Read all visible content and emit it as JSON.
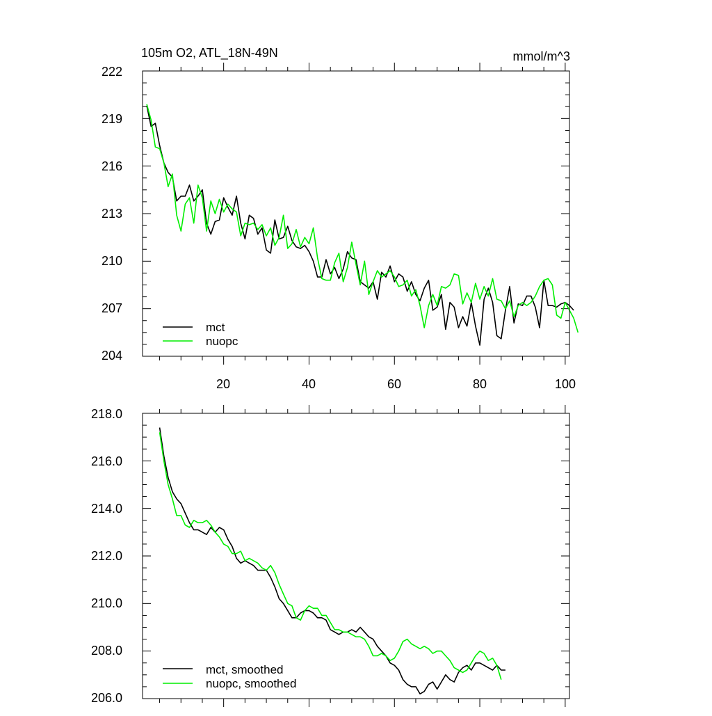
{
  "chart_data": [
    {
      "type": "line",
      "title": "105m O2, ATL_18N-49N",
      "units": "mmol/m^3",
      "xlim": [
        1,
        101
      ],
      "ylim": [
        204,
        222
      ],
      "x_ticks": [
        20,
        40,
        60,
        80,
        100
      ],
      "x_tick_labels": [
        "20",
        "40",
        "60",
        "80",
        "100"
      ],
      "y_ticks": [
        204,
        207,
        210,
        213,
        216,
        219,
        222
      ],
      "y_tick_labels": [
        "204",
        "207",
        "210",
        "213",
        "216",
        "219",
        "222"
      ],
      "x_start": 2,
      "legend_position": "bottom-left",
      "series": [
        {
          "name": "mct",
          "color": "#000000",
          "values": [
            219.8,
            218.5,
            218.7,
            217.3,
            216.2,
            215.6,
            215.3,
            213.8,
            214.1,
            214.1,
            214.8,
            213.8,
            214.1,
            214.5,
            212.4,
            211.7,
            212.5,
            212.6,
            214.0,
            213.4,
            212.9,
            214.1,
            212.4,
            211.4,
            212.9,
            212.7,
            211.7,
            212.1,
            210.7,
            210.5,
            212.6,
            211.4,
            211.5,
            212.2,
            211.3,
            210.9,
            210.8,
            211.0,
            210.6,
            210.0,
            209.0,
            209.0,
            210.1,
            209.2,
            209.6,
            208.9,
            209.5,
            210.6,
            210.2,
            210.1,
            208.7,
            208.5,
            208.3,
            208.7,
            207.6,
            209.3,
            209.0,
            209.7,
            208.7,
            209.2,
            209.0,
            208.1,
            208.7,
            207.9,
            207.5,
            208.3,
            208.8,
            206.9,
            207.1,
            207.9,
            205.7,
            207.4,
            207.1,
            205.8,
            206.5,
            205.9,
            207.4,
            205.9,
            204.7,
            207.6,
            208.3,
            207.4,
            205.3,
            205.1,
            206.9,
            208.4,
            206.1,
            207.3,
            207.2,
            207.8,
            207.8,
            207.1,
            205.8,
            208.8,
            207.2,
            207.2,
            207.1,
            207.3,
            207.4,
            207.2,
            206.9
          ]
        },
        {
          "name": "nuopc",
          "color": "#00ee00",
          "values": [
            219.9,
            218.9,
            217.2,
            217.1,
            216.2,
            214.7,
            215.5,
            212.9,
            211.9,
            213.6,
            214.0,
            212.4,
            214.8,
            214.0,
            211.9,
            213.8,
            213.0,
            213.9,
            213.1,
            213.6,
            213.3,
            213.1,
            211.6,
            212.4,
            212.3,
            212.4,
            212.0,
            212.3,
            211.6,
            212.1,
            211.0,
            211.5,
            212.9,
            210.8,
            211.1,
            212.0,
            210.9,
            211.5,
            211.1,
            212.1,
            210.2,
            208.9,
            208.8,
            208.8,
            209.9,
            210.5,
            208.7,
            209.6,
            211.2,
            209.8,
            208.5,
            210.0,
            207.9,
            208.7,
            209.4,
            209.0,
            209.2,
            209.4,
            209.0,
            208.4,
            208.5,
            208.8,
            207.8,
            208.2,
            207.2,
            205.8,
            207.2,
            207.9,
            207.2,
            208.4,
            208.3,
            208.5,
            209.2,
            209.1,
            207.3,
            208.0,
            207.4,
            208.6,
            207.6,
            208.4,
            207.8,
            208.9,
            207.6,
            207.5,
            207.0,
            207.5,
            206.5,
            207.2,
            207.4,
            207.2,
            207.4,
            207.8,
            208.4,
            208.8,
            208.9,
            208.5,
            206.6,
            206.4,
            207.4,
            206.9,
            206.4,
            205.5
          ]
        }
      ]
    },
    {
      "type": "line",
      "xlim": [
        1,
        101
      ],
      "ylim": [
        206,
        218
      ],
      "x_ticks": [
        20,
        40,
        60,
        80,
        100
      ],
      "y_ticks": [
        206,
        208,
        210,
        212,
        214,
        216,
        218
      ],
      "y_tick_labels": [
        "206.0",
        "208.0",
        "210.0",
        "212.0",
        "214.0",
        "216.0",
        "218.0"
      ],
      "x_start": 5,
      "legend_position": "bottom-left",
      "series": [
        {
          "name": "mct, smoothed",
          "color": "#000000",
          "values": [
            217.4,
            216.2,
            215.3,
            214.7,
            214.4,
            214.2,
            213.8,
            213.4,
            213.1,
            213.1,
            213.0,
            212.9,
            213.2,
            213.0,
            213.2,
            213.1,
            212.7,
            212.4,
            211.9,
            211.7,
            211.8,
            211.7,
            211.6,
            211.4,
            211.4,
            211.4,
            211.1,
            210.7,
            210.2,
            210.0,
            209.7,
            209.4,
            209.4,
            209.6,
            209.7,
            209.7,
            209.6,
            209.4,
            209.4,
            209.3,
            208.9,
            208.8,
            208.7,
            208.8,
            208.8,
            208.9,
            208.8,
            209.0,
            208.8,
            208.6,
            208.5,
            208.2,
            208.0,
            207.8,
            207.5,
            207.4,
            207.2,
            206.8,
            206.6,
            206.5,
            206.5,
            206.2,
            206.3,
            206.6,
            206.7,
            206.4,
            206.7,
            207.0,
            206.8,
            206.7,
            207.1,
            207.3,
            207.4,
            207.2,
            207.5,
            207.5,
            207.4,
            207.3,
            207.2,
            207.4,
            207.2,
            207.2
          ]
        },
        {
          "name": "nuopc, smoothed",
          "color": "#00ee00",
          "values": [
            217.2,
            216.0,
            215.0,
            214.4,
            213.7,
            213.7,
            213.3,
            213.2,
            213.5,
            213.4,
            213.4,
            213.5,
            213.3,
            213.0,
            212.8,
            212.5,
            212.4,
            212.1,
            212.1,
            212.2,
            211.8,
            211.9,
            211.8,
            211.7,
            211.5,
            211.4,
            211.6,
            211.3,
            210.8,
            210.4,
            210.0,
            209.9,
            209.4,
            209.3,
            209.7,
            209.9,
            209.8,
            209.8,
            209.5,
            209.5,
            209.2,
            208.9,
            208.9,
            208.8,
            208.8,
            208.7,
            208.6,
            208.6,
            208.5,
            208.2,
            207.8,
            207.8,
            207.9,
            207.8,
            207.6,
            207.7,
            208.0,
            208.4,
            208.5,
            208.3,
            208.2,
            208.1,
            208.2,
            208.1,
            207.9,
            208.0,
            208.0,
            207.8,
            207.6,
            207.3,
            207.2,
            207.1,
            207.2,
            207.5,
            207.8,
            208.0,
            207.9,
            207.6,
            207.7,
            207.4,
            206.8
          ]
        }
      ]
    }
  ]
}
